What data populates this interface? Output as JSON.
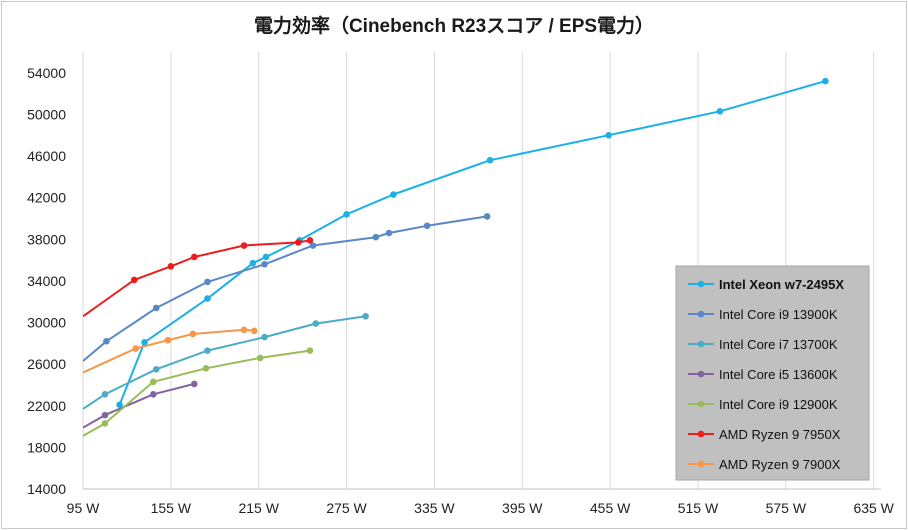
{
  "chart_data": {
    "type": "line",
    "title": "電力効率（Cinebench R23スコア / EPS電力）",
    "xlabel": "",
    "ylabel": "",
    "xlim": [
      95,
      640
    ],
    "ylim": [
      14000,
      56000
    ],
    "x_ticks": [
      95,
      155,
      215,
      275,
      335,
      395,
      455,
      515,
      575,
      635
    ],
    "x_tick_labels": [
      "95 W",
      "155 W",
      "215 W",
      "275 W",
      "335 W",
      "395 W",
      "455 W",
      "515 W",
      "575 W",
      "635 W"
    ],
    "y_ticks": [
      14000,
      18000,
      22000,
      26000,
      30000,
      34000,
      38000,
      42000,
      46000,
      50000,
      54000
    ],
    "y_tick_labels": [
      "14000",
      "18000",
      "22000",
      "26000",
      "30000",
      "34000",
      "38000",
      "42000",
      "46000",
      "50000",
      "54000"
    ],
    "grid": "vertical",
    "legend_position": "right",
    "series": [
      {
        "name": "Intel Xeon w7-2495X",
        "color": "#1ab0e8",
        "bold": true,
        "points": [
          [
            120,
            22100
          ],
          [
            137,
            28100
          ],
          [
            180,
            32300
          ],
          [
            211,
            35700
          ],
          [
            220,
            36300
          ],
          [
            243,
            37900
          ],
          [
            275,
            40400
          ],
          [
            307,
            42300
          ],
          [
            373,
            45600
          ],
          [
            454,
            48000
          ],
          [
            530,
            50300
          ],
          [
            602,
            53200
          ]
        ]
      },
      {
        "name": "Intel Core i9 13900K",
        "color": "#5a87c5",
        "bold": false,
        "points": [
          [
            95,
            26300
          ],
          [
            111,
            28200
          ],
          [
            145,
            31400
          ],
          [
            180,
            33900
          ],
          [
            219,
            35600
          ],
          [
            252,
            37400
          ],
          [
            295,
            38200
          ],
          [
            304,
            38600
          ],
          [
            330,
            39300
          ],
          [
            371,
            40200
          ]
        ]
      },
      {
        "name": "Intel Core i7 13700K",
        "color": "#4bacc6",
        "bold": false,
        "points": [
          [
            95,
            21700
          ],
          [
            110,
            23100
          ],
          [
            145,
            25500
          ],
          [
            180,
            27300
          ],
          [
            219,
            28600
          ],
          [
            254,
            29900
          ],
          [
            288,
            30600
          ]
        ]
      },
      {
        "name": "Intel Core i5 13600K",
        "color": "#8064a2",
        "bold": false,
        "points": [
          [
            95,
            19900
          ],
          [
            110,
            21100
          ],
          [
            143,
            23100
          ],
          [
            171,
            24100
          ]
        ]
      },
      {
        "name": "Intel Core i9 12900K",
        "color": "#9bbb59",
        "bold": false,
        "points": [
          [
            95,
            19100
          ],
          [
            110,
            20300
          ],
          [
            143,
            24300
          ],
          [
            179,
            25600
          ],
          [
            216,
            26600
          ],
          [
            250,
            27300
          ]
        ]
      },
      {
        "name": "AMD Ryzen 9 7950X",
        "color": "#ee1c1c",
        "bold": false,
        "points": [
          [
            95,
            30600
          ],
          [
            130,
            34100
          ],
          [
            155,
            35400
          ],
          [
            171,
            36300
          ],
          [
            205,
            37400
          ],
          [
            242,
            37700
          ],
          [
            250,
            37900
          ]
        ]
      },
      {
        "name": "AMD Ryzen 9 7900X",
        "color": "#f79646",
        "bold": false,
        "points": [
          [
            95,
            25200
          ],
          [
            131,
            27500
          ],
          [
            153,
            28300
          ],
          [
            170,
            28900
          ],
          [
            205,
            29300
          ],
          [
            212,
            29200
          ]
        ]
      }
    ]
  }
}
